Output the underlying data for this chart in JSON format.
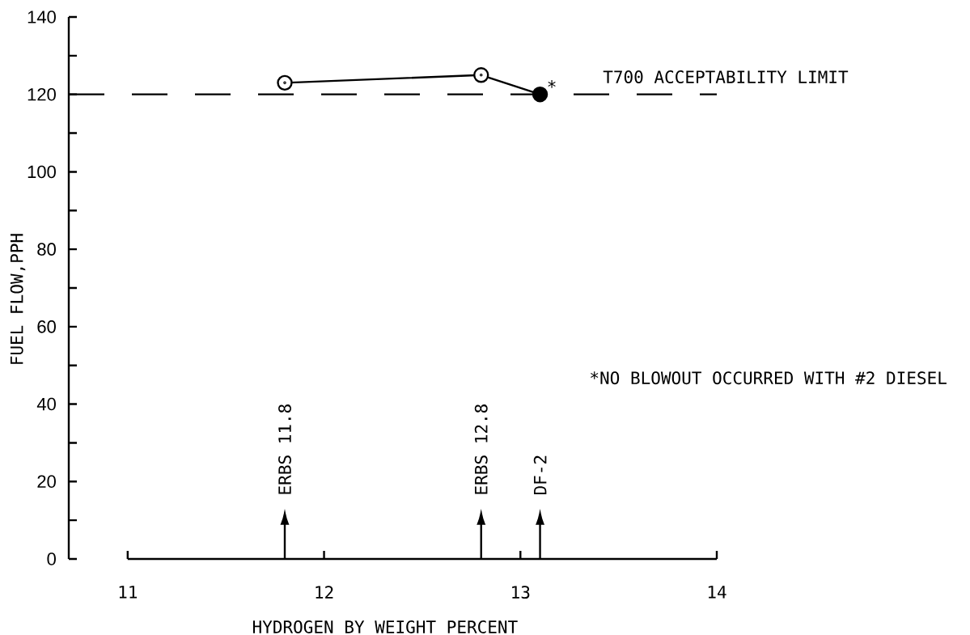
{
  "chart_data": {
    "type": "line",
    "xlabel": "HYDROGEN BY WEIGHT PERCENT",
    "ylabel": "FUEL FLOW,PPH",
    "x": [
      11.8,
      12.8,
      13.1
    ],
    "series": [
      {
        "color": "#000000",
        "colors": [
          "#ffffff",
          "#ffffff",
          "#000000"
        ],
        "values": [
          123,
          125,
          120
        ]
      }
    ],
    "xlim": [
      10.7,
      14
    ],
    "xticks": [
      11,
      12,
      13,
      14
    ],
    "ylim": [
      0,
      140
    ],
    "yticks": [
      0,
      {
        "value": 10,
        "label": null
      },
      20,
      {
        "value": 30,
        "label": null
      },
      40,
      {
        "value": 50,
        "label": null
      },
      60,
      {
        "value": 70,
        "label": null
      },
      80,
      {
        "value": 90,
        "label": null
      },
      100,
      {
        "value": 110,
        "label": null
      },
      120,
      {
        "value": 130,
        "label": null
      },
      140
    ],
    "marker": "circle",
    "line_style": "solid",
    "ref_lines": [
      {
        "axis": "y",
        "value": 120,
        "label": "T700 ACCEPTABILITY LIMIT",
        "line_style": "dashed",
        "color": "#000000"
      }
    ],
    "annotations": [
      "ERBS 11.8",
      "ERBS 12.8",
      "DF-2",
      {
        "text": "*",
        "x": 13.1,
        "y": 120
      },
      "*NO BLOWOUT OCCURRED WITH #2 DIESEL"
    ]
  }
}
